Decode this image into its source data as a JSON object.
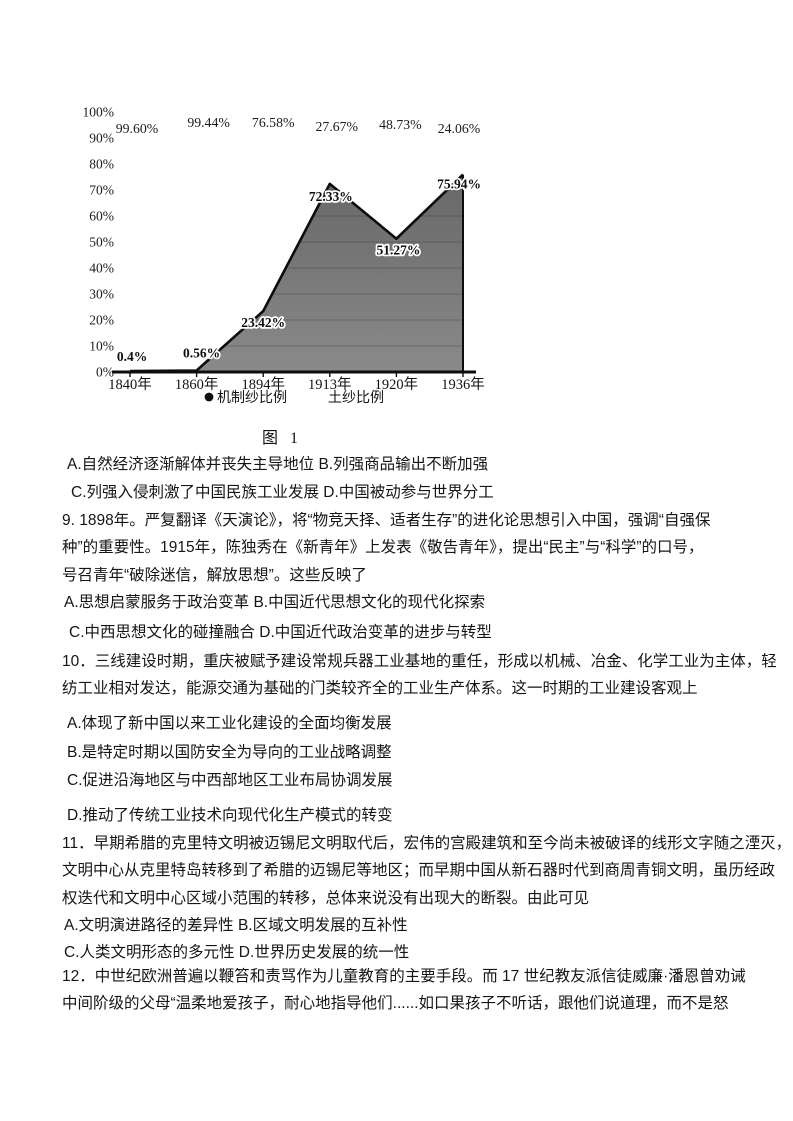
{
  "chart_data": {
    "type": "area",
    "caption": "图 1",
    "categories": [
      "1840年",
      "1860年",
      "1894年",
      "1913年",
      "1920年",
      "1936年"
    ],
    "yticks": [
      "100%",
      "90%",
      "80%",
      "70%",
      "60%",
      "50%",
      "40%",
      "30%",
      "20%",
      "10%",
      "0%"
    ],
    "ylim": [
      0,
      100
    ],
    "series": [
      {
        "name": "机制纱比例",
        "marker": "filled-circle",
        "values": [
          0.4,
          0.56,
          23.42,
          72.33,
          51.27,
          75.94
        ],
        "labels": [
          "0.4%",
          "0.56%",
          "23.42%",
          "72.33%",
          "51.27%",
          "75.94%"
        ]
      },
      {
        "name": "土纱比例",
        "marker": "none",
        "values": [
          99.6,
          99.44,
          76.58,
          27.67,
          48.73,
          24.06
        ],
        "labels": [
          "99.60%",
          "99.44%",
          "76.58%",
          "27.67%",
          "48.73%",
          "24.06%"
        ]
      }
    ],
    "legend": [
      "机制纱比例",
      "土纱比例"
    ],
    "grid": "horizontal, visible inside shaded area only",
    "legend_position": "bottom",
    "colors": {
      "area_fill_top": "#676767",
      "area_fill_bottom": "#8a8a8a",
      "area_edge": "#0d0d0d",
      "axis": "#0d0d0d",
      "label_text": "#0e0e0e"
    }
  },
  "content": {
    "lines": [
      "A.自然经济逐渐解体并丧失主导地位 B.列强商品输出不断加强",
      "C.列强入侵刺激了中国民族工业发展 D.中国被动参与世界分工",
      "9. 1898年。严复翻译《天演论》，将“物竞天择、适者生存”的进化论思想引入中国，强调“自强保",
      "种”的重要性。1915年，陈独秀在《新青年》上发表《敬告青年》，提出“民主”与“科学”的口号，",
      "号召青年“破除迷信，解放思想”。这些反映了",
      "A.思想启蒙服务于政治变革 B.中国近代思想文化的现代化探索",
      "C.中西思想文化的碰撞融合 D.中国近代政治变革的进步与转型",
      "10．三线建设时期，重庆被赋予建设常规兵器工业基地的重任，形成以机械、冶金、化学工业为主体，轻",
      "纺工业相对发达，能源交通为基础的门类较齐全的工业生产体系。这一时期的工业建设客观上",
      "A.体现了新中国以来工业化建设的全面均衡发展",
      "B.是特定时期以国防安全为导向的工业战略调整",
      "C.促进沿海地区与中西部地区工业布局协调发展",
      "D.推动了传统工业技术向现代化生产模式的转变",
      "11．早期希腊的克里特文明被迈锡尼文明取代后，宏伟的宫殿建筑和至今尚未被破译的线形文字随之湮灭，",
      "文明中心从克里特岛转移到了希腊的迈锡尼等地区；而早期中国从新石器时代到商周青铜文明，虽历经政",
      "权迭代和文明中心区域小范围的转移，总体来说没有出现大的断裂。由此可见",
      "A.文明演进路径的差异性 B.区域文明发展的互补性",
      "C.人类文明形态的多元性 D.世界历史发展的统一性",
      "12．中世纪欧洲普遍以鞭笞和责骂作为儿童教育的主要手段。而 17 世纪教友派信徒威廉·潘恩曾劝诫",
      "中间阶级的父母“温柔地爱孩子，耐心地指导他们......如口果孩子不听话，跟他们说道理，而不是怒"
    ]
  }
}
